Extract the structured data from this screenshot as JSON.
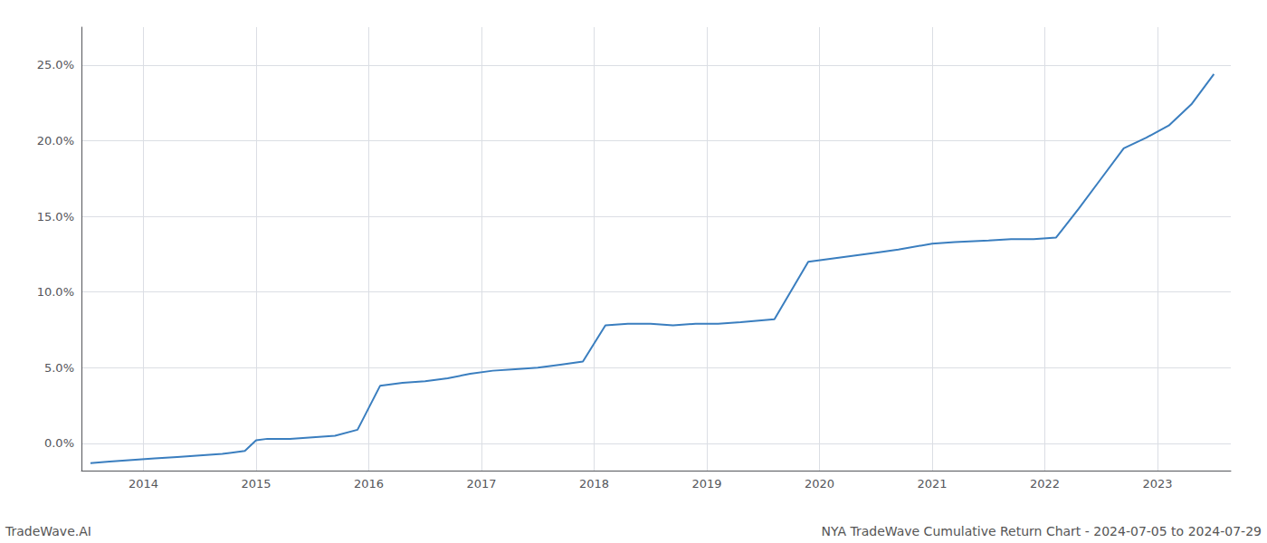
{
  "chart_data": {
    "type": "line",
    "annotations": [
      "TradeWave.AI",
      "NYA TradeWave Cumulative Return Chart - 2024-07-05 to 2024-07-29"
    ],
    "x": [
      2013.53,
      2013.7,
      2013.9,
      2014.1,
      2014.3,
      2014.5,
      2014.7,
      2014.9,
      2015.0,
      2015.1,
      2015.3,
      2015.5,
      2015.7,
      2015.9,
      2016.1,
      2016.3,
      2016.5,
      2016.7,
      2016.9,
      2017.1,
      2017.3,
      2017.5,
      2017.7,
      2017.9,
      2018.1,
      2018.3,
      2018.5,
      2018.7,
      2018.9,
      2019.1,
      2019.3,
      2019.6,
      2019.9,
      2020.2,
      2020.5,
      2020.7,
      2021.0,
      2021.2,
      2021.5,
      2021.7,
      2021.9,
      2022.1,
      2022.3,
      2022.5,
      2022.7,
      2022.9,
      2023.1,
      2023.3,
      2023.5
    ],
    "values": [
      -0.013,
      -0.012,
      -0.011,
      -0.01,
      -0.009,
      -0.008,
      -0.007,
      -0.005,
      0.002,
      0.003,
      0.003,
      0.004,
      0.005,
      0.009,
      0.038,
      0.04,
      0.041,
      0.043,
      0.046,
      0.048,
      0.049,
      0.05,
      0.052,
      0.054,
      0.078,
      0.079,
      0.079,
      0.078,
      0.079,
      0.079,
      0.08,
      0.082,
      0.12,
      0.123,
      0.126,
      0.128,
      0.132,
      0.133,
      0.134,
      0.135,
      0.135,
      0.136,
      0.155,
      0.175,
      0.195,
      0.202,
      0.21,
      0.224,
      0.244
    ],
    "color": "#3a7ebf",
    "xlim": [
      2013.45,
      2023.65
    ],
    "xticks": [
      2014,
      2015,
      2016,
      2017,
      2018,
      2019,
      2020,
      2021,
      2022,
      2023
    ],
    "ylim": [
      -0.018,
      0.275
    ],
    "yticks": [
      {
        "value": 0.0,
        "label": "0.0%"
      },
      {
        "value": 0.05,
        "label": "5.0%"
      },
      {
        "value": 0.1,
        "label": "10.0%"
      },
      {
        "value": 0.15,
        "label": "15.0%"
      },
      {
        "value": 0.2,
        "label": "20.0%"
      },
      {
        "value": 0.25,
        "label": "25.0%"
      }
    ],
    "grid": true
  }
}
